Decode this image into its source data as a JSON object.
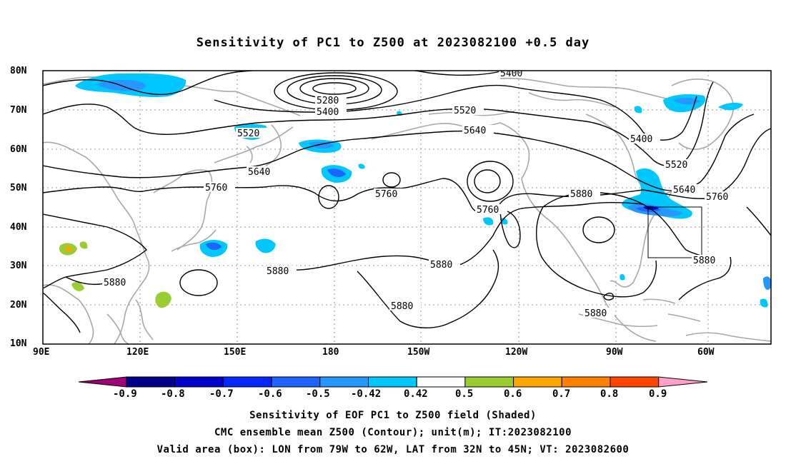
{
  "title": "Sensitivity of PC1 to Z500 at 2023082100 +0.5 day",
  "lat_labels": [
    "80N",
    "70N",
    "60N",
    "50N",
    "40N",
    "30N",
    "20N",
    "10N"
  ],
  "lon_labels": [
    "90E",
    "120E",
    "150E",
    "180",
    "150W",
    "120W",
    "90W",
    "60W"
  ],
  "colorbar": {
    "labels": [
      "-0.9",
      "-0.8",
      "-0.7",
      "-0.6",
      "-0.5",
      "-0.42",
      "0.42",
      "0.5",
      "0.6",
      "0.7",
      "0.8",
      "0.9"
    ],
    "colors": [
      "#a0007a",
      "#00008b",
      "#0000cd",
      "#0028ff",
      "#1e64ff",
      "#2896ff",
      "#00c8ff",
      "#ffffff",
      "#9acd32",
      "#ffa500",
      "#ff7f00",
      "#ff4500",
      "#ff0000",
      "#ffa0c8"
    ]
  },
  "contour_labels": {
    "c5400_top": "5400",
    "c5280": "5280",
    "c5400_low": "5400",
    "c5520_left": "5520",
    "c5520_mid": "5520",
    "c5640_mid": "5640",
    "c5640_left": "5640",
    "c5760_left": "5760",
    "c5760_mid": "5760",
    "c5760_low": "5760",
    "c5400_right": "5400",
    "c5520_right": "5520",
    "c5640_right": "5640",
    "c5760_right": "5760",
    "c5880_right": "5880",
    "c5880_box": "5880",
    "c5880_left": "5880",
    "c5880_a": "5880",
    "c5880_b": "5880",
    "c5880_c": "5880",
    "c5880_d": "5880"
  },
  "captions": {
    "line1": "Sensitivity of EOF PC1 to Z500 field (Shaded)",
    "line2": "CMC ensemble mean Z500 (Contour); unit(m); IT:2023082100",
    "line3": "Valid area (box): LON from 79W to 62W, LAT from 32N to 45N; VT: 2023082600"
  }
}
